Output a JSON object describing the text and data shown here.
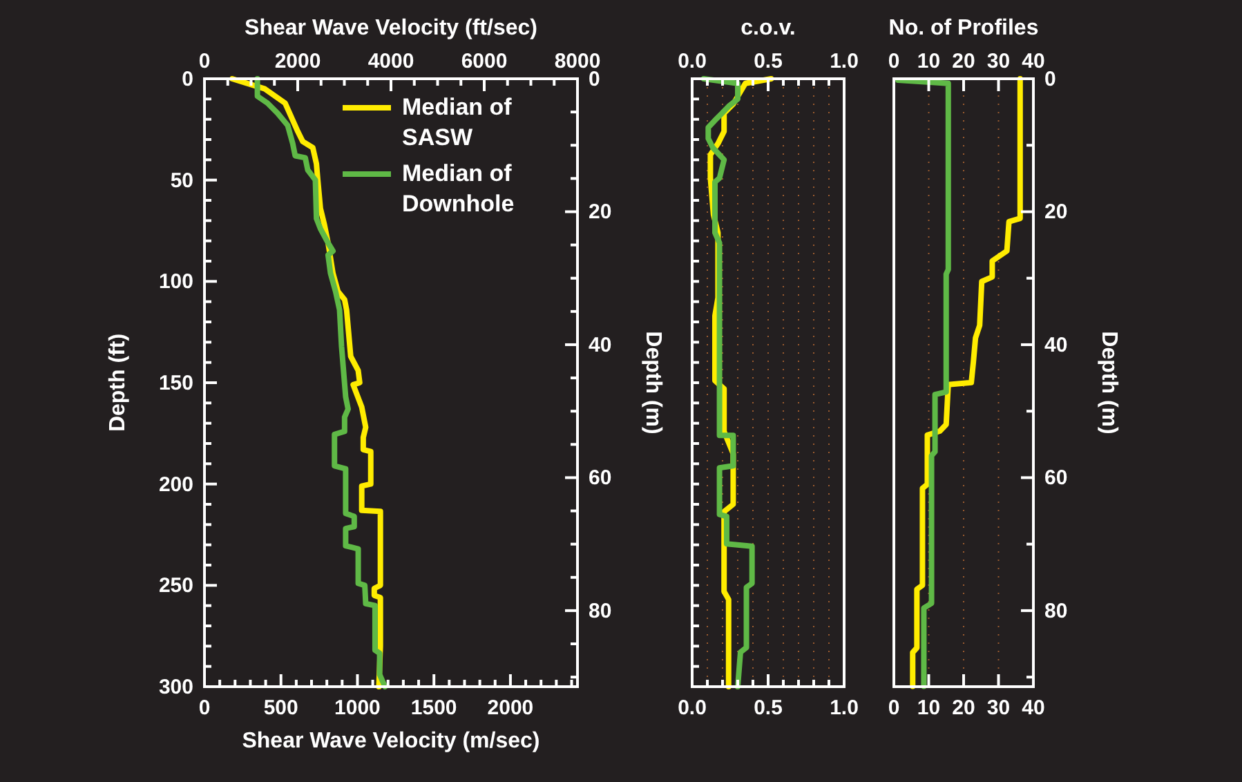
{
  "chart_data": [
    {
      "type": "line",
      "xlabel": "Shear Wave Velocity (m/sec)",
      "x2label": "Shear Wave Velocity (ft/sec)",
      "ylabel": "Depth (ft)",
      "y2label": "Depth (m)",
      "xlim": [
        0,
        2438.4
      ],
      "xticks": [
        0,
        {
          "value": 100,
          "label": null
        },
        {
          "value": 200,
          "label": null
        },
        {
          "value": 300,
          "label": null
        },
        {
          "value": 400,
          "label": null
        },
        500,
        {
          "value": 600,
          "label": null
        },
        {
          "value": 700,
          "label": null
        },
        {
          "value": 800,
          "label": null
        },
        {
          "value": 900,
          "label": null
        },
        1000,
        {
          "value": 1100,
          "label": null
        },
        {
          "value": 1200,
          "label": null
        },
        {
          "value": 1300,
          "label": null
        },
        {
          "value": 1400,
          "label": null
        },
        1500,
        {
          "value": 1600,
          "label": null
        },
        {
          "value": 1700,
          "label": null
        },
        {
          "value": 1800,
          "label": null
        },
        {
          "value": 1900,
          "label": null
        },
        2000,
        {
          "value": 2100,
          "label": null
        },
        {
          "value": 2200,
          "label": null
        },
        {
          "value": 2300,
          "label": null
        },
        {
          "value": 2400,
          "label": null
        }
      ],
      "x2lim": [
        0,
        8000
      ],
      "x2ticks": [
        0,
        {
          "value": 500,
          "label": null
        },
        {
          "value": 1000,
          "label": null
        },
        {
          "value": 1500,
          "label": null
        },
        2000,
        {
          "value": 2500,
          "label": null
        },
        {
          "value": 3000,
          "label": null
        },
        {
          "value": 3500,
          "label": null
        },
        4000,
        {
          "value": 4500,
          "label": null
        },
        {
          "value": 5000,
          "label": null
        },
        {
          "value": 5500,
          "label": null
        },
        6000,
        {
          "value": 6500,
          "label": null
        },
        {
          "value": 7000,
          "label": null
        },
        {
          "value": 7500,
          "label": null
        },
        8000
      ],
      "ylim": [
        300,
        0
      ],
      "yticks": [
        0,
        {
          "value": 10,
          "label": null
        },
        {
          "value": 20,
          "label": null
        },
        {
          "value": 30,
          "label": null
        },
        {
          "value": 40,
          "label": null
        },
        50,
        {
          "value": 60,
          "label": null
        },
        {
          "value": 70,
          "label": null
        },
        {
          "value": 80,
          "label": null
        },
        {
          "value": 90,
          "label": null
        },
        100,
        {
          "value": 110,
          "label": null
        },
        {
          "value": 120,
          "label": null
        },
        {
          "value": 130,
          "label": null
        },
        {
          "value": 140,
          "label": null
        },
        150,
        {
          "value": 160,
          "label": null
        },
        {
          "value": 170,
          "label": null
        },
        {
          "value": 180,
          "label": null
        },
        {
          "value": 190,
          "label": null
        },
        200,
        {
          "value": 210,
          "label": null
        },
        {
          "value": 220,
          "label": null
        },
        {
          "value": 230,
          "label": null
        },
        {
          "value": 240,
          "label": null
        },
        250,
        {
          "value": 260,
          "label": null
        },
        {
          "value": 270,
          "label": null
        },
        {
          "value": 280,
          "label": null
        },
        {
          "value": 290,
          "label": null
        },
        300
      ],
      "y2lim": [
        91.44,
        0
      ],
      "y2ticks": [
        0,
        {
          "value": 5,
          "label": null
        },
        {
          "value": 10,
          "label": null
        },
        {
          "value": 15,
          "label": null
        },
        20,
        {
          "value": 25,
          "label": null
        },
        {
          "value": 30,
          "label": null
        },
        {
          "value": 35,
          "label": null
        },
        40,
        {
          "value": 45,
          "label": null
        },
        {
          "value": 50,
          "label": null
        },
        {
          "value": 55,
          "label": null
        },
        60,
        {
          "value": 65,
          "label": null
        },
        {
          "value": 70,
          "label": null
        },
        {
          "value": 75,
          "label": null
        },
        80,
        {
          "value": 85,
          "label": null
        },
        {
          "value": 90,
          "label": null
        }
      ],
      "legend": "top right",
      "grid": false,
      "line_style": "solid",
      "marker": "none",
      "series": [
        {
          "name": "Median of SASW",
          "color": "#ffec00",
          "x": [
            181,
            395,
            527,
            610,
            643,
            708,
            732,
            741,
            758,
            784,
            808,
            840,
            873,
            916,
            929,
            956,
            1005,
            1015,
            972,
            1028,
            1054,
            1038,
            1038,
            1087,
            1087,
            1028,
            1028,
            1150,
            1150,
            1110,
            1110,
            1150,
            1150,
            1140
          ],
          "values": [
            0,
            5,
            12,
            26,
            31,
            34,
            42,
            50,
            64,
            72,
            81,
            96,
            105,
            109,
            114,
            137,
            144,
            150,
            151,
            162,
            172,
            177,
            183,
            184,
            200,
            201,
            213,
            213.5,
            250,
            251.5,
            255,
            256,
            280,
            300
          ]
        },
        {
          "name": "Median of Downhole",
          "color": "#5fb946",
          "x": [
            346,
            346,
            412,
            478,
            544,
            577,
            593,
            659,
            675,
            725,
            732,
            758,
            808,
            840,
            808,
            824,
            857,
            883,
            896,
            923,
            939,
            916,
            916,
            850,
            850,
            923,
            923,
            979,
            979,
            923,
            923,
            1005,
            1005,
            1048,
            1054,
            1115,
            1115,
            1145,
            1145,
            1180
          ],
          "values": [
            0,
            8.6,
            12,
            17,
            23,
            32,
            38,
            39,
            45,
            50,
            69,
            74,
            81,
            85,
            87,
            96,
            105,
            114,
            132,
            157,
            163,
            167,
            174,
            175.5,
            191,
            192.5,
            214.5,
            216,
            221,
            222,
            230.5,
            232,
            249,
            250,
            259,
            260,
            282,
            283.5,
            294,
            300
          ]
        }
      ]
    },
    {
      "type": "line",
      "x2label": "c.o.v.",
      "tick_labels": "x",
      "xlim": [
        0,
        1
      ],
      "xticks": [
        {
          "value": 0,
          "label": "0.0"
        },
        {
          "value": 0.1,
          "label": null
        },
        {
          "value": 0.2,
          "label": null
        },
        {
          "value": 0.3,
          "label": null
        },
        {
          "value": 0.4,
          "label": null
        },
        {
          "value": 0.5,
          "label": "0.5"
        },
        {
          "value": 0.6,
          "label": null
        },
        {
          "value": 0.7,
          "label": null
        },
        {
          "value": 0.8,
          "label": null
        },
        {
          "value": 0.9,
          "label": null
        },
        {
          "value": 1,
          "label": "1.0"
        }
      ],
      "x2lim": [
        0,
        1
      ],
      "x2ticks": [
        {
          "value": 0,
          "label": "0.0"
        },
        {
          "value": 0.1,
          "label": null
        },
        {
          "value": 0.2,
          "label": null
        },
        {
          "value": 0.3,
          "label": null
        },
        {
          "value": 0.4,
          "label": null
        },
        {
          "value": 0.5,
          "label": "0.5"
        },
        {
          "value": 0.6,
          "label": null
        },
        {
          "value": 0.7,
          "label": null
        },
        {
          "value": 0.8,
          "label": null
        },
        {
          "value": 0.9,
          "label": null
        },
        {
          "value": 1,
          "label": "1.0"
        }
      ],
      "ylim": [
        300,
        0
      ],
      "yticks": [
        {
          "value": 0,
          "label": null
        },
        {
          "value": 10,
          "label": null
        },
        {
          "value": 20,
          "label": null
        },
        {
          "value": 30,
          "label": null
        },
        {
          "value": 40,
          "label": null
        },
        {
          "value": 50,
          "label": null
        },
        {
          "value": 60,
          "label": null
        },
        {
          "value": 70,
          "label": null
        },
        {
          "value": 80,
          "label": null
        },
        {
          "value": 90,
          "label": null
        },
        {
          "value": 100,
          "label": null
        },
        {
          "value": 110,
          "label": null
        },
        {
          "value": 120,
          "label": null
        },
        {
          "value": 130,
          "label": null
        },
        {
          "value": 140,
          "label": null
        },
        {
          "value": 150,
          "label": null
        },
        {
          "value": 160,
          "label": null
        },
        {
          "value": 170,
          "label": null
        },
        {
          "value": 180,
          "label": null
        },
        {
          "value": 190,
          "label": null
        },
        {
          "value": 200,
          "label": null
        },
        {
          "value": 210,
          "label": null
        },
        {
          "value": 220,
          "label": null
        },
        {
          "value": 230,
          "label": null
        },
        {
          "value": 240,
          "label": null
        },
        {
          "value": 250,
          "label": null
        },
        {
          "value": 260,
          "label": null
        },
        {
          "value": 270,
          "label": null
        },
        {
          "value": 280,
          "label": null
        },
        {
          "value": 290,
          "label": null
        },
        {
          "value": 300,
          "label": null
        }
      ],
      "grid": "x",
      "legend": false,
      "line_style": "solid",
      "marker": "none",
      "series": [
        {
          "color": "#ffec00",
          "x": [
            0.52,
            0.35,
            0.27,
            0.21,
            0.21,
            0.17,
            0.12,
            0.12,
            0.14,
            0.17,
            0.17,
            0.15,
            0.15,
            0.21,
            0.21,
            0.27,
            0.27,
            0.21,
            0.21,
            0.24,
            0.24
          ],
          "values": [
            0,
            2.3,
            12.5,
            17,
            26,
            32,
            37.5,
            49,
            67,
            76,
            108,
            117,
            149,
            153,
            174,
            185,
            210,
            213.6,
            253,
            257,
            300
          ]
        },
        {
          "color": "#5fb946",
          "x": [
            0.076,
            0.3,
            0.3,
            0.24,
            0.197,
            0.15,
            0.106,
            0.106,
            0.136,
            0.21,
            0.18,
            0.15,
            0.15,
            0.18,
            0.18,
            0.27,
            0.27,
            0.18,
            0.18,
            0.227,
            0.227,
            0.394,
            0.394,
            0.357,
            0.357,
            0.318,
            0.3
          ],
          "values": [
            0,
            2.3,
            10,
            13.6,
            17,
            20.5,
            24,
            29.5,
            34,
            40,
            49,
            51,
            76,
            81,
            176,
            176,
            191,
            192,
            215,
            216,
            229.5,
            230.7,
            249,
            251,
            280.7,
            283,
            300
          ]
        }
      ]
    },
    {
      "type": "line",
      "x2label": "No. of Profiles",
      "y2label": "Depth (m)",
      "xlim": [
        0,
        40
      ],
      "xticks": [
        0,
        10,
        20,
        30,
        40
      ],
      "x2lim": [
        0,
        40
      ],
      "x2ticks": [
        0,
        10,
        20,
        30,
        40
      ],
      "y2lim": [
        91.44,
        0
      ],
      "y2ticks": [
        0,
        {
          "value": 10,
          "label": null
        },
        20,
        {
          "value": 30,
          "label": null
        },
        40,
        {
          "value": 50,
          "label": null
        },
        60,
        {
          "value": 70,
          "label": null
        },
        80,
        {
          "value": 90,
          "label": null
        }
      ],
      "grid": "x",
      "legend": false,
      "line_style": "solid",
      "marker": "none",
      "series": [
        {
          "color": "#ffec00",
          "axis": "y2",
          "x": [
            36.2,
            36.2,
            33,
            32.4,
            28.2,
            28.2,
            25.2,
            24.6,
            23.4,
            22.8,
            22.2,
            15.6,
            15,
            13.2,
            9.6,
            9.6,
            8.2,
            8.2,
            6.6,
            6.6,
            5.4,
            5.4
          ],
          "values": [
            0,
            21,
            21.5,
            25.9,
            27.4,
            29.8,
            30.5,
            37.1,
            39,
            42.6,
            45.7,
            46,
            52,
            53,
            53.6,
            61,
            61.6,
            76.2,
            76.8,
            85.6,
            86.3,
            91.4
          ]
        },
        {
          "color": "#5fb946",
          "axis": "y2",
          "x": [
            1.2,
            15.6,
            15.6,
            15,
            15,
            11.8,
            11.8,
            10.8,
            10.8,
            8.6,
            8.6
          ],
          "values": [
            0.2,
            0.7,
            28.7,
            29.4,
            47.1,
            47.5,
            56.1,
            56.7,
            78.9,
            79.6,
            91.4
          ]
        }
      ]
    }
  ]
}
